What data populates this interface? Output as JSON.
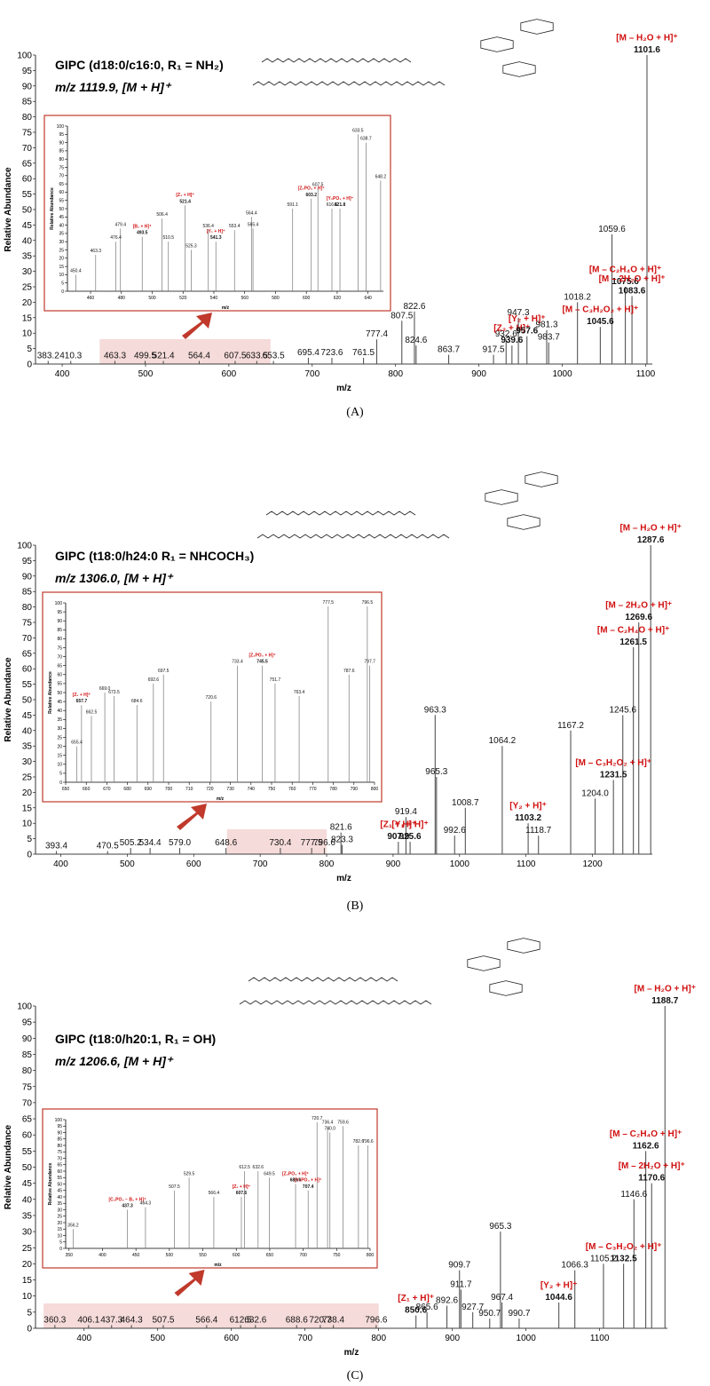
{
  "chart_data": [
    {
      "type": "stem",
      "title": "GIPC (d18:0/c16:0, R₁ = NH₂)",
      "subtitle": "m/z 1119.9, [M + H]⁺",
      "panel_label": "(A)",
      "x_label": "m/z",
      "y_label": "Relative Abundance",
      "color": "#555555",
      "ion_color": "#d01010",
      "xlim": [
        368,
        1108
      ],
      "xticks": [
        400,
        500,
        600,
        700,
        800,
        900,
        1000,
        1100
      ],
      "ylim": [
        0,
        100
      ],
      "yticks": [
        0,
        5,
        10,
        15,
        20,
        25,
        30,
        35,
        40,
        45,
        50,
        55,
        60,
        65,
        70,
        75,
        80,
        85,
        90,
        95,
        100
      ],
      "x": [
        383.2,
        410.3,
        463.3,
        499.5,
        521.4,
        564.4,
        607.5,
        633.5,
        653.5,
        695.4,
        723.6,
        761.5,
        777.4,
        807.5,
        822.6,
        824.6,
        863.7,
        917.5,
        932.6,
        939.6,
        947.3,
        957.6,
        981.3,
        983.7,
        1018.2,
        1045.6,
        1059.6,
        1075.6,
        1083.6,
        1101.6
      ],
      "x_labels": [
        "383.2",
        "410.3",
        "463.3",
        "499.5",
        "521.4",
        "564.4",
        "607.5",
        "633.5",
        "653.5",
        "695.4",
        "723.6",
        "761.5",
        "777.4",
        "807.5",
        "822.6",
        "824.6",
        "863.7",
        "917.5",
        "932.6",
        "939.6",
        "947.3",
        "957.6",
        "981.3",
        "983.7",
        "1018.2",
        "1045.6",
        "1059.6",
        "1075.6",
        "1083.6",
        "1101.6"
      ],
      "values": [
        1,
        1,
        1,
        1,
        1,
        1,
        1,
        1,
        1,
        2,
        2,
        2,
        8,
        14,
        17,
        6,
        3,
        3,
        8,
        6,
        15,
        9,
        11,
        7,
        20,
        12,
        42,
        25,
        22,
        100
      ],
      "ions": [
        null,
        null,
        null,
        null,
        null,
        null,
        null,
        null,
        null,
        null,
        null,
        null,
        null,
        null,
        null,
        null,
        null,
        null,
        null,
        "[Z₂ + H]⁺",
        null,
        "[Y₂ + H]⁺",
        null,
        null,
        null,
        "[M – C₃H₂O₂ + H]⁺",
        null,
        "[M – C₂H₄O + H]⁺",
        "[M – 2H₂O + H]⁺",
        "[M – H₂O + H]⁺"
      ],
      "inset": {
        "type": "stem",
        "x_label": "m/z",
        "y_label": "Relative Abundance",
        "color": "#777777",
        "ion_color": "#d01010",
        "xlim": [
          445,
          650
        ],
        "xticks": [
          460,
          480,
          500,
          520,
          540,
          560,
          580,
          600,
          620,
          640
        ],
        "ylim": [
          0,
          100
        ],
        "yticks": [
          0,
          5,
          10,
          15,
          20,
          25,
          30,
          35,
          40,
          45,
          50,
          55,
          60,
          65,
          70,
          75,
          80,
          85,
          90,
          95,
          100
        ],
        "x": [
          450.4,
          463.3,
          476.4,
          479.4,
          493.5,
          506.4,
          510.5,
          521.4,
          525.3,
          536.4,
          541.3,
          553.4,
          564.4,
          565.4,
          591.1,
          603.2,
          607.5,
          616.6,
          621.8,
          633.5,
          638.7,
          648.2
        ],
        "x_labels": [
          "450.4",
          "463.3",
          "476.4",
          "479.4",
          "493.5",
          "506.4",
          "510.5",
          "521.4",
          "525.3",
          "536.4",
          "541.3",
          "553.4",
          "564.4",
          "565.4",
          "591.1",
          "603.2",
          "607.5",
          "616.6",
          "621.8",
          "633.5",
          "638.7",
          "648.2"
        ],
        "values": [
          10,
          22,
          30,
          38,
          33,
          44,
          30,
          52,
          25,
          37,
          30,
          37,
          45,
          38,
          50,
          56,
          62,
          50,
          50,
          95,
          90,
          67
        ],
        "ions": [
          null,
          null,
          null,
          null,
          "[B₁ + H]⁺",
          null,
          null,
          "[Z₃ + H]⁺",
          null,
          null,
          "[Y₁ + H]⁺",
          null,
          null,
          null,
          null,
          "[Z₂PO₃ + H]⁺",
          null,
          null,
          "[Y₂PO₃ + H]⁺",
          null,
          null,
          null
        ]
      }
    },
    {
      "type": "stem",
      "title": "GIPC (t18:0/h24:0  R₁ = NHCOCH₃)",
      "subtitle": "m/z 1306.0, [M + H]⁺",
      "panel_label": "(B)",
      "x_label": "m/z",
      "y_label": "Relative Abundance",
      "color": "#555555",
      "ion_color": "#d01010",
      "xlim": [
        362,
        1290
      ],
      "xticks": [
        400,
        500,
        600,
        700,
        800,
        900,
        1000,
        1100,
        1200
      ],
      "ylim": [
        0,
        100
      ],
      "yticks": [
        0,
        5,
        10,
        15,
        20,
        25,
        30,
        35,
        40,
        45,
        50,
        55,
        60,
        65,
        70,
        75,
        80,
        85,
        90,
        95,
        100
      ],
      "x": [
        393.4,
        470.5,
        505.2,
        534.4,
        579.0,
        648.6,
        730.4,
        777.5,
        796.6,
        821.6,
        823.3,
        907.9,
        919.4,
        925.6,
        963.3,
        965.3,
        992.6,
        1008.7,
        1064.2,
        1103.2,
        1118.7,
        1167.2,
        1204.0,
        1231.5,
        1245.6,
        1261.5,
        1269.6,
        1287.6
      ],
      "x_labels": [
        "393.4",
        "470.5",
        "505.2",
        "534.4",
        "579.0",
        "648.6",
        "730.4",
        "777.5",
        "796.6",
        "821.6",
        "823.3",
        "907.9",
        "919.4",
        "925.6",
        "963.3",
        "965.3",
        "992.6",
        "1008.7",
        "1064.2",
        "1103.2",
        "1118.7",
        "1167.2",
        "1204.0",
        "1231.5",
        "1245.6",
        "1261.5",
        "1269.6",
        "1287.6"
      ],
      "values": [
        1,
        1,
        2,
        2,
        2,
        2,
        2,
        2,
        2,
        7,
        3,
        4,
        12,
        4,
        45,
        25,
        6,
        15,
        35,
        10,
        6,
        40,
        18,
        24,
        45,
        67,
        75,
        100
      ],
      "ions": [
        null,
        null,
        null,
        null,
        null,
        null,
        null,
        null,
        null,
        null,
        null,
        "[Z₁ + H]⁺",
        null,
        "[Y₁ + H]⁺",
        null,
        null,
        null,
        null,
        null,
        "[Y₂ + H]⁺",
        null,
        null,
        null,
        "[M – C₃H₂O₂ + H]⁺",
        null,
        "[M – C₂H₄O + H]⁺",
        "[M – 2H₂O + H]⁺",
        "[M – H₂O + H]⁺"
      ],
      "inset": {
        "type": "stem",
        "x_label": "m/z",
        "y_label": "Relative Abundance",
        "color": "#777777",
        "ion_color": "#d01010",
        "xlim": [
          650,
          800
        ],
        "xticks": [
          650,
          660,
          670,
          680,
          690,
          700,
          710,
          720,
          730,
          740,
          750,
          760,
          770,
          780,
          790,
          800
        ],
        "ylim": [
          0,
          100
        ],
        "yticks": [
          0,
          5,
          10,
          15,
          20,
          25,
          30,
          35,
          40,
          45,
          50,
          55,
          60,
          65,
          70,
          75,
          80,
          85,
          90,
          95,
          100
        ],
        "x": [
          655.4,
          657.7,
          662.5,
          669.0,
          673.5,
          684.6,
          692.6,
          697.5,
          720.6,
          733.4,
          745.5,
          751.7,
          763.4,
          777.5,
          787.6,
          796.5,
          797.7
        ],
        "x_labels": [
          "655.4",
          "657.7",
          "662.5",
          "669.0",
          "673.5",
          "684.6",
          "692.6",
          "697.5",
          "720.6",
          "733.4",
          "745.5",
          "751.7",
          "763.4",
          "777.5",
          "787.6",
          "796.5",
          "797.7"
        ],
        "values": [
          20,
          43,
          37,
          50,
          48,
          43,
          55,
          60,
          45,
          65,
          65,
          55,
          48,
          98,
          60,
          98,
          65
        ],
        "ions": [
          null,
          "[Z₁ + H]⁺",
          null,
          null,
          null,
          null,
          null,
          null,
          null,
          null,
          "[Z₂PO₃ + H]⁺",
          null,
          null,
          null,
          null,
          null,
          null
        ]
      }
    },
    {
      "type": "stem",
      "title": "GIPC (t18:0/h20:1, R₁ = OH)",
      "subtitle": "m/z 1206.6, [M + H]⁺",
      "panel_label": "(C)",
      "x_label": "m/z",
      "y_label": "Relative Abundance",
      "color": "#555555",
      "ion_color": "#d01010",
      "xlim": [
        334,
        1192
      ],
      "xticks": [
        400,
        500,
        600,
        700,
        800,
        900,
        1000,
        1100
      ],
      "ylim": [
        0,
        100
      ],
      "yticks": [
        0,
        5,
        10,
        15,
        20,
        25,
        30,
        35,
        40,
        45,
        50,
        55,
        60,
        65,
        70,
        75,
        80,
        85,
        90,
        95,
        100
      ],
      "x": [
        360.3,
        406.1,
        437.3,
        464.3,
        507.5,
        566.4,
        612.5,
        632.6,
        688.6,
        720.7,
        738.4,
        796.6,
        850.6,
        865.6,
        892.6,
        909.7,
        911.7,
        927.7,
        950.7,
        965.3,
        967.4,
        990.7,
        1044.6,
        1066.3,
        1105.2,
        1132.5,
        1146.6,
        1162.6,
        1170.6,
        1188.7
      ],
      "x_labels": [
        "360.3",
        "406.1",
        "437.3",
        "464.3",
        "507.5",
        "566.4",
        "612.5",
        "632.6",
        "688.6",
        "720.7",
        "738.4",
        "796.6",
        "850.6",
        "865.6",
        "892.6",
        "909.7",
        "911.7",
        "927.7",
        "950.7",
        "965.3",
        "967.4",
        "990.7",
        "1044.6",
        "1066.3",
        "1105.2",
        "1132.5",
        "1146.6",
        "1162.6",
        "1170.6",
        "1188.7"
      ],
      "values": [
        1,
        1,
        1,
        1,
        1,
        1,
        1,
        1,
        1,
        1,
        1,
        1,
        4,
        5,
        7,
        18,
        12,
        5,
        3,
        30,
        8,
        3,
        8,
        18,
        20,
        20,
        40,
        55,
        45,
        100
      ],
      "ions": [
        null,
        null,
        null,
        null,
        null,
        null,
        null,
        null,
        null,
        null,
        null,
        null,
        "[Z₁ + H]⁺",
        null,
        null,
        null,
        null,
        null,
        null,
        null,
        null,
        null,
        "[Y₂ + H]⁺",
        null,
        null,
        "[M – C₃H₂O₂ + H]⁺",
        null,
        "[M – C₂H₄O + H]⁺",
        "[M – 2H₂O + H]⁺",
        "[M – H₂O + H]⁺"
      ],
      "inset": {
        "type": "stem",
        "x_label": "m/z",
        "y_label": "Relative Abundance",
        "color": "#777777",
        "ion_color": "#d01010",
        "xlim": [
          345,
          800
        ],
        "xticks": [
          350,
          400,
          450,
          500,
          550,
          600,
          650,
          700,
          750,
          800
        ],
        "ylim": [
          0,
          100
        ],
        "yticks": [
          0,
          5,
          10,
          15,
          20,
          25,
          30,
          35,
          40,
          45,
          50,
          55,
          60,
          65,
          70,
          75,
          80,
          85,
          90,
          95,
          100
        ],
        "x": [
          356.2,
          437.3,
          464.3,
          507.5,
          529.5,
          566.4,
          607.6,
          612.5,
          632.6,
          649.5,
          688.6,
          707.4,
          720.7,
          736.4,
          740.0,
          759.6,
          782.6,
          796.6
        ],
        "x_labels": [
          "356.2",
          "437.3",
          "464.3",
          "507.5",
          "529.5",
          "566.4",
          "607.6",
          "612.5",
          "632.6",
          "649.5",
          "688.6",
          "707.4",
          "720.7",
          "736.4",
          "740.0",
          "759.6",
          "782.6",
          "796.6"
        ],
        "values": [
          15,
          30,
          32,
          45,
          55,
          40,
          40,
          60,
          60,
          55,
          50,
          45,
          98,
          95,
          90,
          95,
          80,
          80
        ],
        "ions": [
          null,
          "[C₃PO₃ − B₁ + H]⁺",
          null,
          null,
          null,
          null,
          "[Z₁ + H]⁺",
          null,
          null,
          null,
          "[Z₂PO₃ + H]⁺",
          "[Y₂PO₃ + H]⁺",
          null,
          null,
          null,
          null,
          null,
          null
        ]
      }
    }
  ]
}
